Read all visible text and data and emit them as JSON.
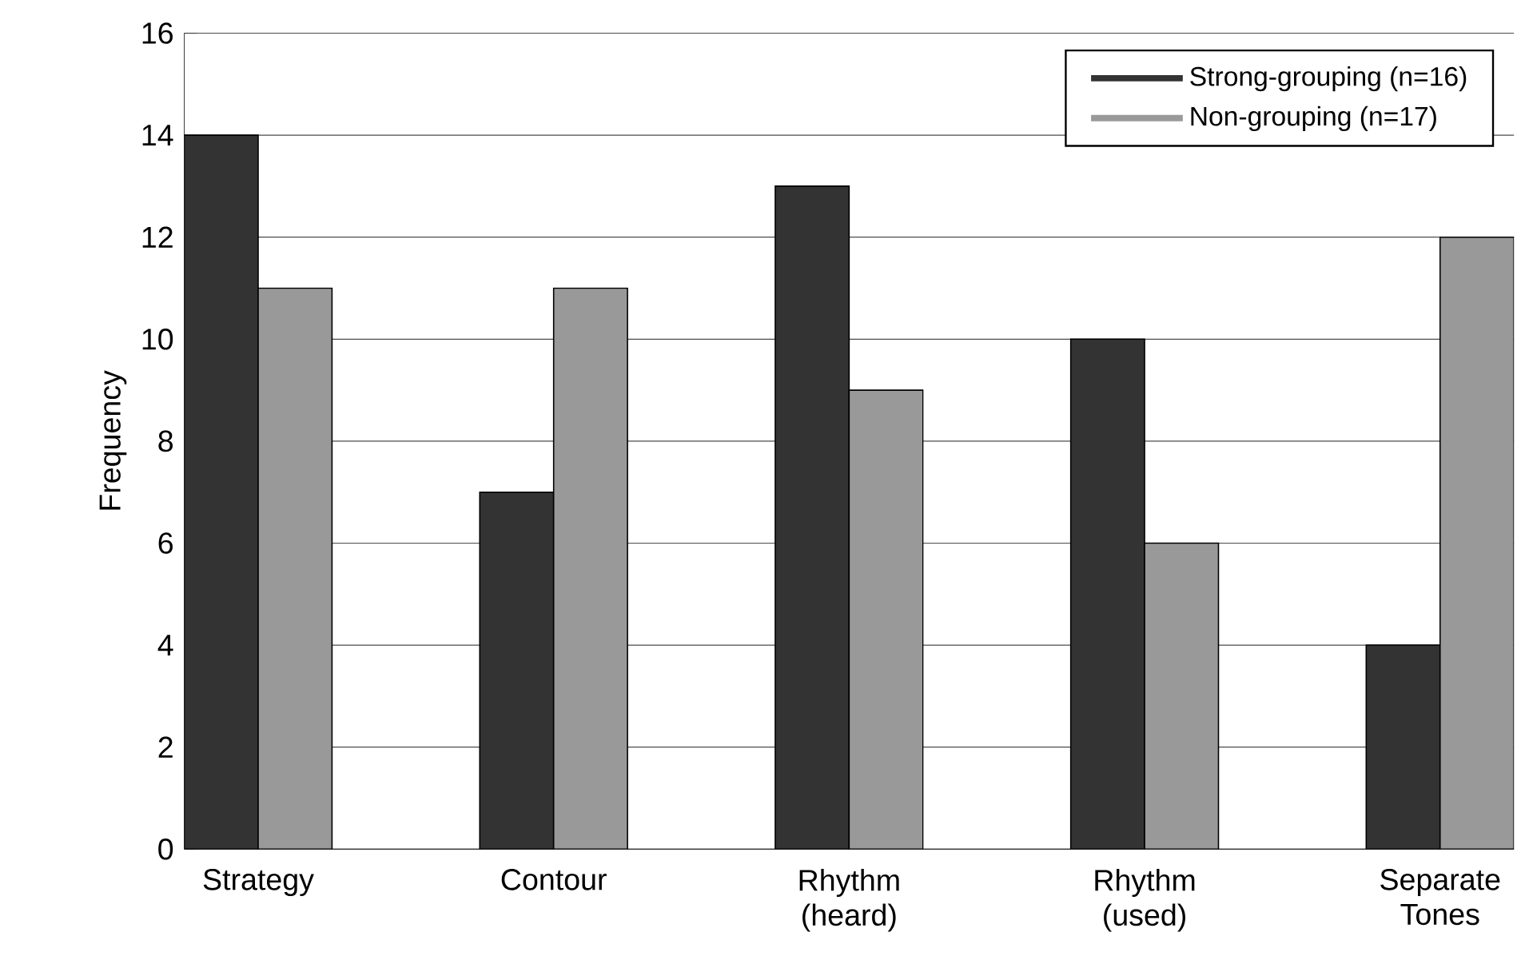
{
  "chart_data": {
    "type": "bar",
    "ylabel": "Frequency",
    "categories": [
      "Strategy",
      "Contour",
      "Rhythm (heard)",
      "Rhythm (used)",
      "Separate Tones"
    ],
    "series": [
      {
        "name": "Strong-grouping (n=16)",
        "color": "#333333",
        "values": [
          14,
          7,
          13,
          10,
          4
        ]
      },
      {
        "name": "Non-grouping    (n=17)",
        "color": "#999999",
        "values": [
          11,
          11,
          9,
          6,
          12
        ]
      }
    ],
    "ylim": [
      0,
      16
    ],
    "yticks": [
      0,
      2,
      4,
      6,
      8,
      10,
      12,
      14,
      16
    ],
    "grid": "y",
    "legend": "top right"
  }
}
